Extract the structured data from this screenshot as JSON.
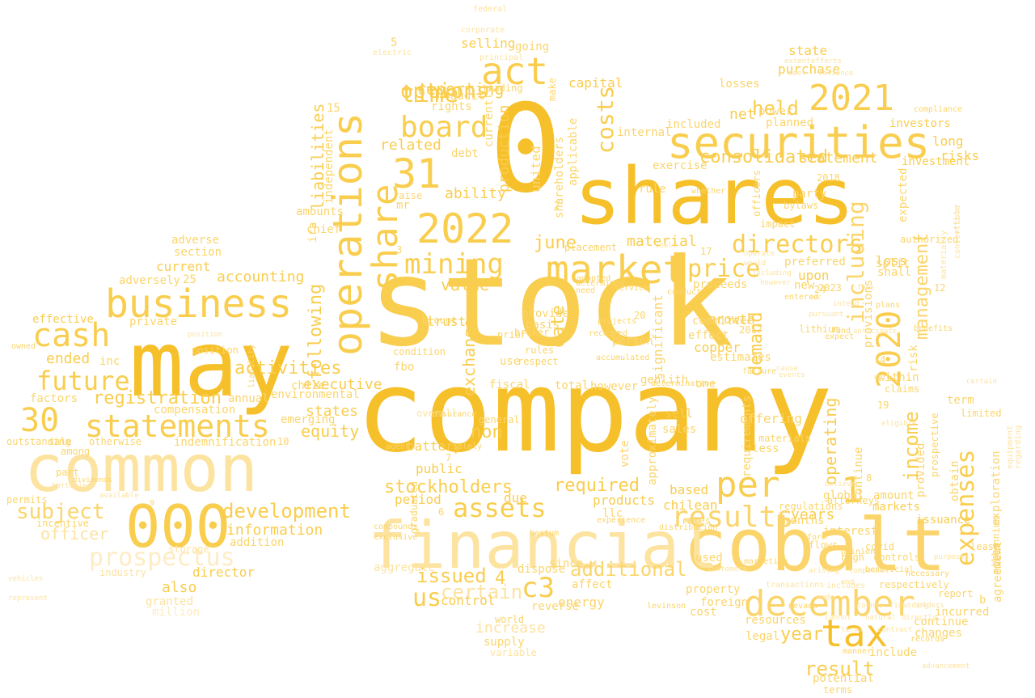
{
  "palette": {
    "dark": "#f6c02a",
    "mid": "#f9cd4e",
    "light": "#fbd56b",
    "pale": "#fde3a0",
    "faint": "#feecc4"
  },
  "words": [
    "stock",
    "company",
    "0",
    "shares",
    "may",
    "common",
    "cobalt",
    "financial",
    "securities",
    "000",
    "2022",
    "market",
    "business",
    "operations",
    "tax",
    "december",
    "2021",
    "31",
    "act",
    "board",
    "cash",
    "statements",
    "30",
    "assets",
    "directors",
    "2020",
    "results",
    "mining",
    "prospectus",
    "per",
    "share",
    "time",
    "options",
    "future",
    "including",
    "1",
    "expenses",
    "subject",
    "costs",
    "c3",
    "price",
    "development",
    "management",
    "income",
    "result",
    "registration",
    "activities",
    "june",
    "held",
    "consolidated",
    "certain",
    "additional",
    "related",
    "reporting",
    "issued",
    "us",
    "required",
    "stockholders",
    "value",
    "ability",
    "date",
    "demand",
    "officer",
    "information",
    "non",
    "accounting",
    "ended",
    "net",
    "material",
    "following",
    "equity",
    "exchange",
    "years",
    "operating",
    "year",
    "liabilities",
    "statement",
    "purchase",
    "state",
    "effective",
    "executive",
    "states",
    "growth",
    "upon",
    "production",
    "loss",
    "selling",
    "capital",
    "risks",
    "long",
    "investors",
    "investment",
    "also",
    "director",
    "4",
    "control",
    "increase",
    "energy",
    "aggregate",
    "granted",
    "million",
    "adverse",
    "section",
    "current",
    "adversely",
    "25",
    "private",
    "inc",
    "chile",
    "compensation",
    "factors",
    "annual",
    "environmental",
    "emerging",
    "trust",
    "fbo",
    "battery",
    "public",
    "overall",
    "based",
    "sell",
    "sales",
    "offering",
    "less",
    "products",
    "llc",
    "period",
    "due",
    "chilean",
    "global",
    "amount",
    "markets",
    "issuance",
    "provided",
    "obtain",
    "exploration",
    "copper",
    "effect",
    "committee",
    "person",
    "significant",
    "proceeds",
    "new",
    "preferred",
    "shall",
    "internal",
    "rule",
    "exercise",
    "included",
    "planned",
    "losses",
    "power",
    "party",
    "bylaws",
    "impact",
    "officers",
    "split",
    "expected",
    "united",
    "5",
    "electric",
    "federal",
    "corporate",
    "going",
    "make",
    "audit",
    "rights",
    "debt",
    "applicable",
    "shareholders",
    "provide",
    "basis",
    "dispose",
    "affect",
    "reverse",
    "world",
    "supply",
    "variable",
    "since",
    "used",
    "property",
    "cost",
    "foreign",
    "resources",
    "legal",
    "transactions",
    "includes",
    "respectively",
    "report",
    "incurred",
    "continue",
    "changes",
    "include",
    "potential",
    "terms",
    "interest",
    "months",
    "requirements",
    "approximately",
    "vote",
    "sale",
    "otherwise",
    "indemnification",
    "part",
    "10",
    "incentive",
    "addition",
    "industry",
    "storage",
    "position",
    "outstanding",
    "among",
    "permits",
    "use",
    "fiscal",
    "rules",
    "respect",
    "prior",
    "general",
    "mr",
    "raise",
    "trading",
    "currently",
    "principal",
    "ira",
    "independent",
    "15",
    "amounts",
    "chief",
    "lithium",
    "estimates",
    "genlith",
    "one",
    "however",
    "total",
    "condition",
    "broker",
    "within",
    "claims",
    "risk",
    "provisions",
    "12",
    "agreement",
    "millennium",
    "2019",
    "term",
    "limited",
    "lease",
    "b",
    "6",
    "7",
    "11",
    "8",
    "9",
    "2",
    "3",
    "14",
    "17",
    "19",
    "20",
    "24",
    "2017",
    "2018",
    "2023",
    "attorneys",
    "authorized",
    "rates",
    "covid",
    "nevada",
    "levinson",
    "vehicles",
    "batteries",
    "available",
    "regulations",
    "placement",
    "blount",
    "agent",
    "solely",
    "bastum",
    "need",
    "whether",
    "plans",
    "extent",
    "efforts",
    "meet",
    "reliance",
    "compliance",
    "fund",
    "benefits",
    "marketing",
    "customers",
    "companies",
    "equipment",
    "regarding",
    "convertible",
    "materially",
    "high",
    "opinion",
    "controls",
    "beneficial",
    "necessary",
    "prospective",
    "continue",
    "materials",
    "flows",
    "form",
    "dividends",
    "exclusive",
    "compounds",
    "graduated",
    "assurance",
    "experience",
    "projects",
    "received",
    "accumulated",
    "adopted",
    "determined",
    "service",
    "conduct",
    "distribution",
    "determination",
    "represent",
    "owned",
    "liability",
    "position",
    "operate",
    "could",
    "would",
    "including",
    "however",
    "believe",
    "expect",
    "anticipate",
    "intend",
    "pursuant",
    "sec",
    "fees",
    "entered",
    "cause",
    "events",
    "failure",
    "rath",
    "eligible",
    "arising",
    "end",
    "made",
    "purposes",
    "certain",
    "officer",
    "manner",
    "records",
    "cannot",
    "terms",
    "tonnes",
    "natural",
    "contract",
    "financing",
    "directly",
    "holders",
    "advancement",
    "balance",
    "connection",
    "interests",
    "limitation",
    "prices",
    "various",
    "laws",
    "sources",
    "standards",
    "costs",
    "performance",
    "process",
    "quality",
    "adequate"
  ]
}
